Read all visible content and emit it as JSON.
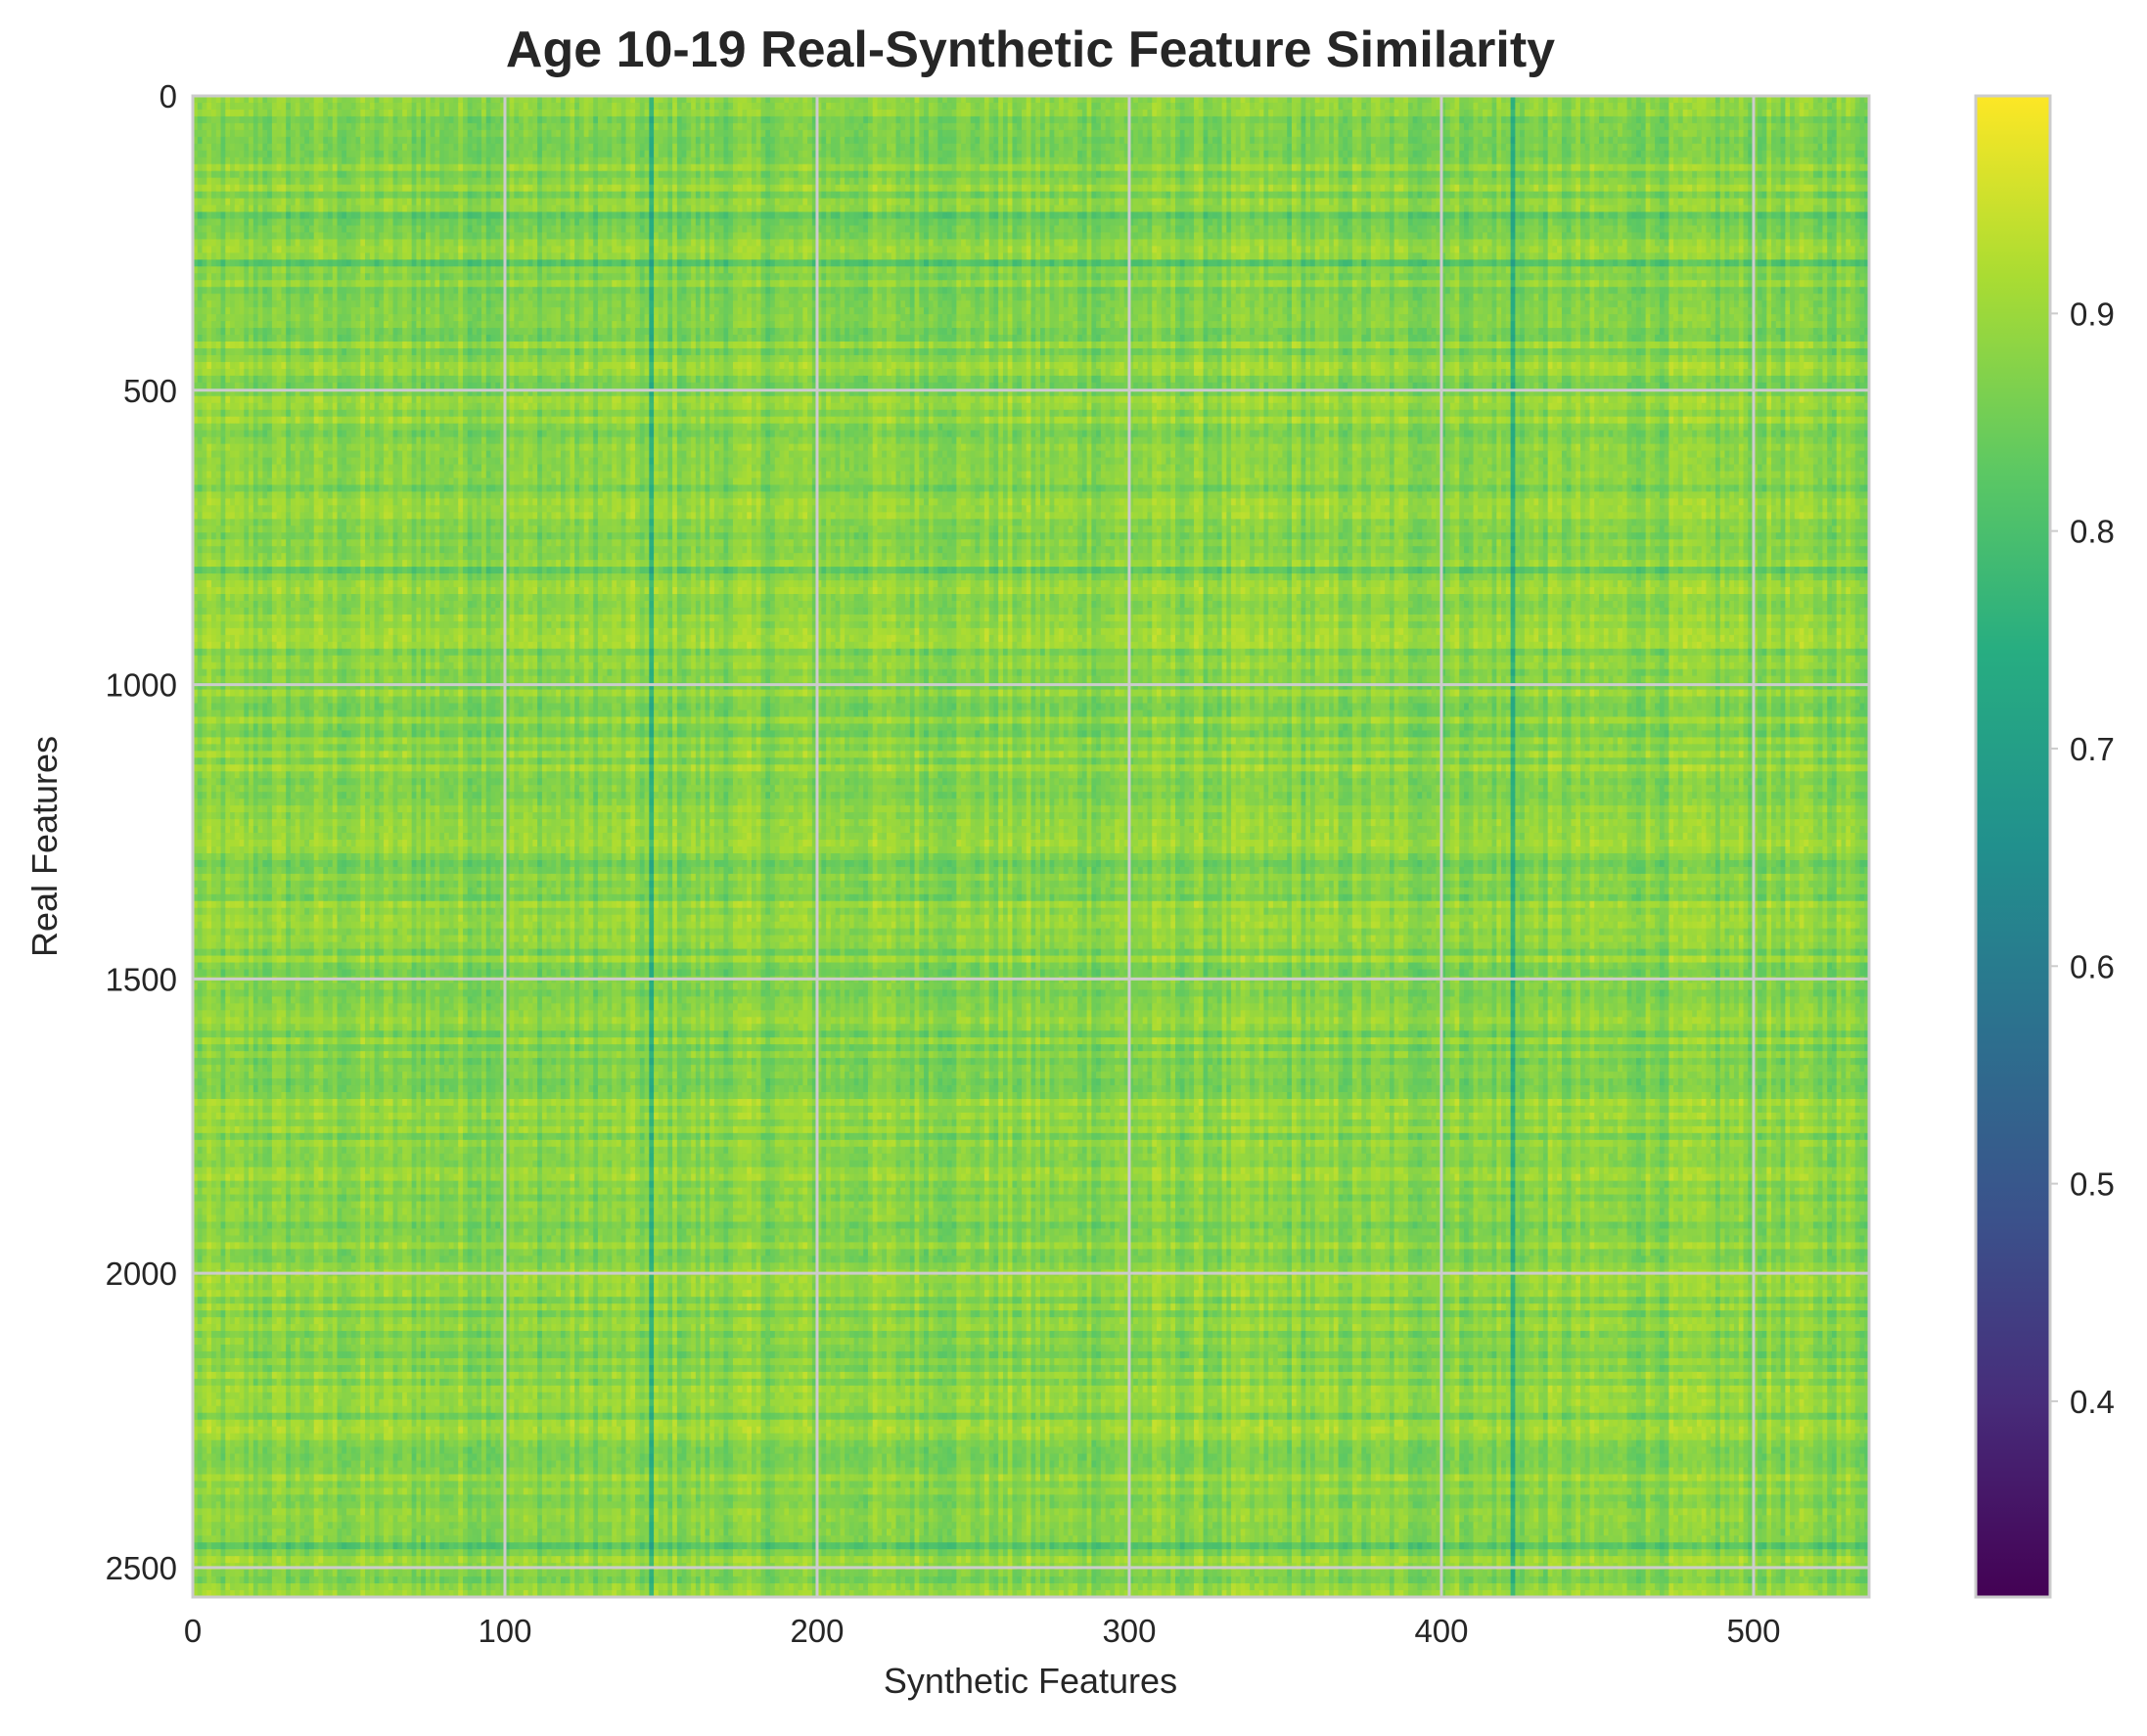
{
  "chart_data": {
    "type": "heatmap",
    "title": "Age 10-19 Real-Synthetic Feature Similarity",
    "xlabel": "Synthetic Features",
    "ylabel": "Real Features",
    "xlim": [
      0,
      537
    ],
    "ylim": [
      2550,
      0
    ],
    "x_ticks": [
      0,
      100,
      200,
      300,
      400,
      500
    ],
    "y_ticks": [
      0,
      500,
      1000,
      1500,
      2000,
      2500
    ],
    "colormap": "viridis",
    "colorbar": {
      "range": [
        0.31,
        1.0
      ],
      "ticks": [
        0.4,
        0.5,
        0.6,
        0.7,
        0.8,
        0.9
      ],
      "tick_labels": [
        "0.4",
        "0.5",
        "0.6",
        "0.7",
        "0.8",
        "0.9"
      ]
    },
    "value_range_observed": [
      0.7,
      0.98
    ],
    "typical_value": 0.88,
    "notable_low_columns": [
      147,
      423
    ],
    "notable_low_rows": [
      200,
      280,
      800,
      1300,
      2140,
      2460
    ],
    "grid": true
  },
  "colors": {
    "grid": "#cccccc",
    "axes_edge": "#cccccc",
    "text": "#262626"
  }
}
